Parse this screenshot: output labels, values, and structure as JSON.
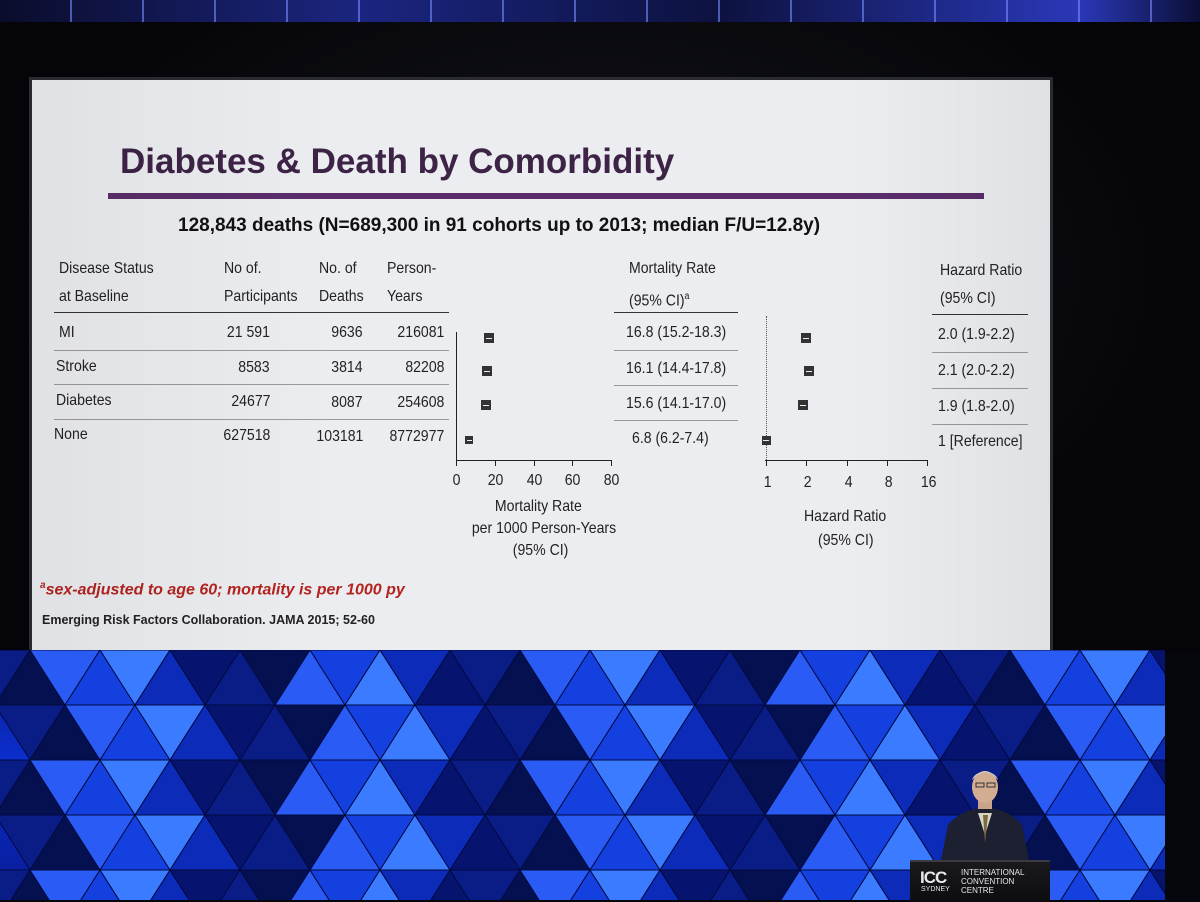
{
  "slide": {
    "title": "Diabetes & Death by Comorbidity",
    "subtitle": "128,843 deaths (N=689,300 in 91 cohorts up to 2013; median F/U=12.8y)",
    "headers": {
      "status_1": "Disease Status",
      "status_2": "at Baseline",
      "participants_1": "No of.",
      "participants_2": "Participants",
      "deaths_1": "No. of",
      "deaths_2": "Deaths",
      "years_1": "Person-",
      "years_2": "Years",
      "mortality_1": "Mortality Rate",
      "mortality_2": "(95% CI)",
      "mortality_sup": "a",
      "hazard_1": "Hazard Ratio",
      "hazard_2": "(95% CI)"
    },
    "rows": [
      {
        "status": "MI",
        "participants": "21 591",
        "deaths": "9636",
        "person_years": "216081",
        "mortality": "16.8 (15.2-18.3)",
        "hazard": "2.0 (1.9-2.2)"
      },
      {
        "status": "Stroke",
        "participants": "8583",
        "deaths": "3814",
        "person_years": "82208",
        "mortality": "16.1 (14.4-17.8)",
        "hazard": "2.1 (2.0-2.2)"
      },
      {
        "status": "Diabetes",
        "participants": "24677",
        "deaths": "8087",
        "person_years": "254608",
        "mortality": "15.6 (14.1-17.0)",
        "hazard": "1.9 (1.8-2.0)"
      },
      {
        "status": "None",
        "participants": "627518",
        "deaths": "103181",
        "person_years": "8772977",
        "mortality": "6.8 (6.2-7.4)",
        "hazard": "1 [Reference]"
      }
    ],
    "mortality_axis": {
      "ticks": [
        "0",
        "20",
        "40",
        "60",
        "80"
      ],
      "label_1": "Mortality Rate",
      "label_2": "per 1000 Person-Years",
      "label_3": "(95% CI)"
    },
    "hazard_axis": {
      "ticks": [
        "1",
        "2",
        "4",
        "8",
        "16"
      ],
      "label_1": "Hazard Ratio",
      "label_2": "(95% CI)"
    },
    "footnote_sup": "a",
    "footnote": "sex-adjusted to age 60; mortality is per 1000 py",
    "citation": "Emerging Risk Factors Collaboration. JAMA 2015; 52-60"
  },
  "chart_data": [
    {
      "type": "scatter",
      "title": "Mortality Rate per 1000 Person-Years (95% CI)",
      "categories": [
        "MI",
        "Stroke",
        "Diabetes",
        "None"
      ],
      "values": [
        16.8,
        16.1,
        15.6,
        6.8
      ],
      "ci_low": [
        15.2,
        14.4,
        14.1,
        6.2
      ],
      "ci_high": [
        18.3,
        17.8,
        17.0,
        7.4
      ],
      "xlim": [
        0,
        80
      ],
      "xticks": [
        0,
        20,
        40,
        60,
        80
      ]
    },
    {
      "type": "scatter",
      "title": "Hazard Ratio (95% CI)",
      "categories": [
        "MI",
        "Stroke",
        "Diabetes",
        "None"
      ],
      "values": [
        2.0,
        2.1,
        1.9,
        1
      ],
      "ci_low": [
        1.9,
        2.0,
        1.8,
        1
      ],
      "ci_high": [
        2.2,
        2.2,
        2.0,
        1
      ],
      "xscale": "log2",
      "xlim": [
        1,
        16
      ],
      "xticks": [
        1,
        2,
        4,
        8,
        16
      ]
    }
  ],
  "venue": {
    "logo": "ICC",
    "city": "SYDNEY",
    "name_1": "INTERNATIONAL",
    "name_2": "CONVENTION",
    "name_3": "CENTRE"
  },
  "colors": {
    "title": "#3d2346",
    "rule": "#5a2d6a",
    "footnote": "#b4231f",
    "backdrop": "#0b2fd0"
  }
}
